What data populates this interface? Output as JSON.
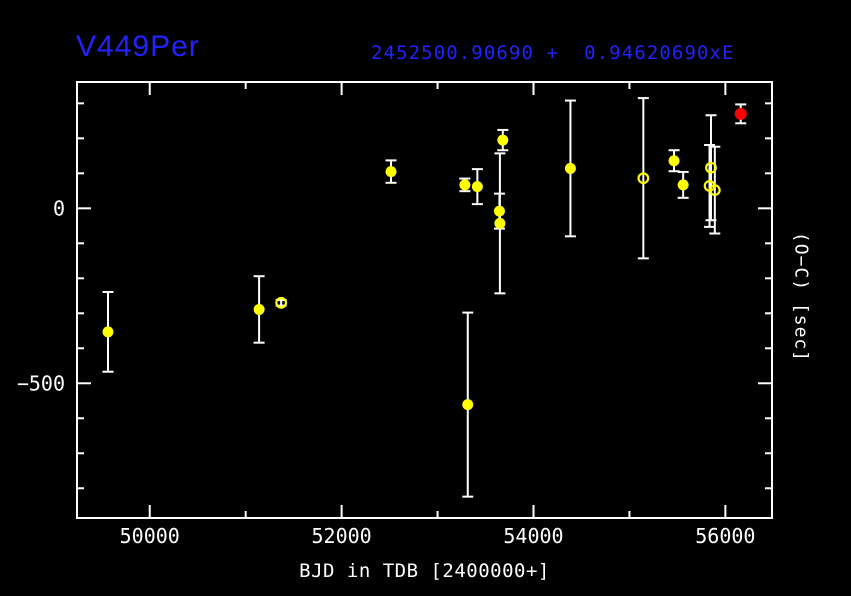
{
  "header": {
    "title": "V449Per",
    "ephemeris": "2452500.90690 +  0.94620690xE"
  },
  "colors": {
    "background": "#000000",
    "foreground": "#ffffff",
    "accent_blue": "#2222ff",
    "marker_yellow": "#ffff00",
    "marker_red": "#ff0000",
    "error_bar": "#ffffff"
  },
  "chart_data": {
    "type": "scatter",
    "title": "V449Per",
    "subtitle": "2452500.90690 +  0.94620690xE",
    "xlabel": "BJD in TDB [2400000+]",
    "ylabel": "(O−C) [sec]",
    "xlim": [
      49242,
      56486
    ],
    "ylim": [
      -885,
      361
    ],
    "grid": false,
    "legend_position": "none",
    "x_ticks_major": [
      {
        "value": 50000,
        "label": "50000"
      },
      {
        "value": 52000,
        "label": "52000"
      },
      {
        "value": 54000,
        "label": "54000"
      },
      {
        "value": 56000,
        "label": "56000"
      }
    ],
    "x_ticks_minor": [
      51000,
      53000,
      55000
    ],
    "y_ticks_major": [
      {
        "value": 0,
        "label": "0"
      },
      {
        "value": -500,
        "label": "−500"
      }
    ],
    "y_ticks_minor": [
      -800,
      -700,
      -600,
      -400,
      -300,
      -200,
      -100,
      100,
      200,
      300
    ],
    "series": [
      {
        "name": "primary-minima-filled",
        "marker": "filled-circle",
        "color": "#ffff00",
        "points": [
          {
            "bjd": 49565,
            "oc": -353,
            "err": 114
          },
          {
            "bjd": 51140,
            "oc": -289,
            "err": 95
          },
          {
            "bjd": 52515,
            "oc": 105,
            "err": 32
          },
          {
            "bjd": 53285,
            "oc": 67,
            "err": 18
          },
          {
            "bjd": 53315,
            "oc": -561,
            "err": 263
          },
          {
            "bjd": 53415,
            "oc": 62,
            "err": 50
          },
          {
            "bjd": 53645,
            "oc": -8,
            "err": 50
          },
          {
            "bjd": 53650,
            "oc": -43,
            "err": 200
          },
          {
            "bjd": 53680,
            "oc": 195,
            "err": 29
          },
          {
            "bjd": 54385,
            "oc": 114,
            "err": 194
          },
          {
            "bjd": 55465,
            "oc": 136,
            "err": 30
          },
          {
            "bjd": 55560,
            "oc": 67,
            "err": 37
          }
        ]
      },
      {
        "name": "secondary-minima-open",
        "marker": "open-circle",
        "color": "#ffff00",
        "points": [
          {
            "bjd": 51370,
            "oc": -270,
            "err": 8
          },
          {
            "bjd": 55145,
            "oc": 86,
            "err": 229
          },
          {
            "bjd": 55835,
            "oc": 64,
            "err": 117
          },
          {
            "bjd": 55850,
            "oc": 116,
            "err": 150
          },
          {
            "bjd": 55890,
            "oc": 52,
            "err": 124
          }
        ]
      },
      {
        "name": "latest-minimum-red",
        "marker": "filled-circle",
        "color": "#ff0000",
        "points": [
          {
            "bjd": 56160,
            "oc": 270,
            "err": 27
          }
        ]
      }
    ]
  }
}
